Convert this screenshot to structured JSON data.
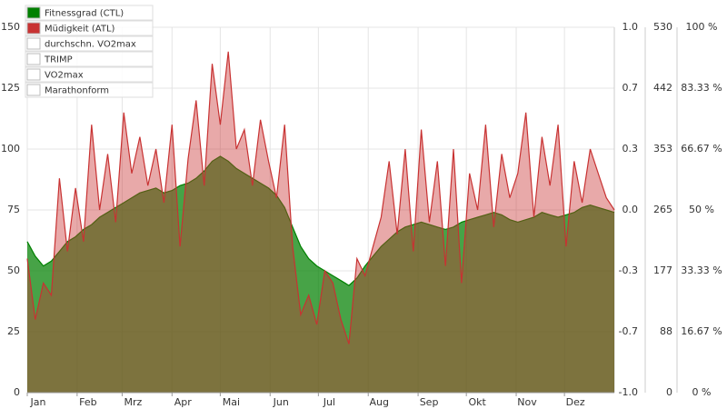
{
  "chart_data": {
    "type": "area",
    "x": [
      0,
      5,
      10,
      15,
      20,
      25,
      30,
      35,
      40,
      45,
      50,
      55,
      60,
      65,
      70,
      75,
      80,
      85,
      90,
      95,
      100,
      105,
      110,
      115,
      120,
      125,
      130,
      135,
      140,
      145,
      150,
      155,
      160,
      165,
      170,
      175,
      180,
      185,
      190,
      195,
      200,
      205,
      210,
      215,
      220,
      225,
      230,
      235,
      240,
      245,
      250,
      255,
      260,
      265,
      270,
      275,
      280,
      285,
      290,
      295,
      300,
      305,
      310,
      315,
      320,
      325,
      330,
      335,
      340,
      345,
      350,
      355,
      360,
      365
    ],
    "xlim": [
      0,
      365
    ],
    "xticks": [
      {
        "value": 0,
        "label": "Jan"
      },
      {
        "value": 31,
        "label": "Feb"
      },
      {
        "value": 59,
        "label": "Mrz"
      },
      {
        "value": 90,
        "label": "Apr"
      },
      {
        "value": 120,
        "label": "Mai"
      },
      {
        "value": 151,
        "label": "Jun"
      },
      {
        "value": 181,
        "label": "Jul"
      },
      {
        "value": 212,
        "label": "Aug"
      },
      {
        "value": 243,
        "label": "Sep"
      },
      {
        "value": 273,
        "label": "Okt"
      },
      {
        "value": 304,
        "label": "Nov"
      },
      {
        "value": 334,
        "label": "Dez"
      }
    ],
    "ylim": [
      0,
      150
    ],
    "yticks": [
      0,
      25,
      50,
      75,
      100,
      125,
      150
    ],
    "y2lim": [
      -1,
      1
    ],
    "y2ticks": [
      {
        "value": 1,
        "label": "1.0"
      },
      {
        "value": 0.667,
        "label": "0.7"
      },
      {
        "value": 0.333,
        "label": "0.3"
      },
      {
        "value": 0,
        "label": "0.0"
      },
      {
        "value": -0.333,
        "label": "-0.3"
      },
      {
        "value": -0.667,
        "label": "-0.7"
      },
      {
        "value": -1,
        "label": "-1.0"
      }
    ],
    "y3lim": [
      0,
      530
    ],
    "y3ticks": [
      {
        "value": 530,
        "label": "530"
      },
      {
        "value": 441.67,
        "label": "442"
      },
      {
        "value": 353.33,
        "label": "353"
      },
      {
        "value": 265,
        "label": "265"
      },
      {
        "value": 176.67,
        "label": "177"
      },
      {
        "value": 88.33,
        "label": "88"
      },
      {
        "value": 0,
        "label": "0"
      }
    ],
    "y4lim": [
      0,
      100
    ],
    "y4ticks": [
      {
        "value": 100,
        "label": "100 %"
      },
      {
        "value": 83.33,
        "label": "83.33 %"
      },
      {
        "value": 66.67,
        "label": "66.67 %"
      },
      {
        "value": 50,
        "label": "50 %"
      },
      {
        "value": 33.33,
        "label": "33.33 %"
      },
      {
        "value": 16.67,
        "label": "16.67 %"
      },
      {
        "value": 0,
        "label": "0 %"
      }
    ],
    "grid": true,
    "series": [
      {
        "name": "Fitnessgrad (CTL)",
        "color": "#008000",
        "visible": true,
        "values": [
          62,
          56,
          52,
          54,
          58,
          62,
          64,
          67,
          69,
          72,
          74,
          76,
          78,
          80,
          82,
          83,
          84,
          82,
          83,
          85,
          86,
          88,
          91,
          95,
          97,
          95,
          92,
          90,
          88,
          86,
          84,
          81,
          76,
          68,
          60,
          55,
          52,
          50,
          48,
          46,
          44,
          47,
          52,
          56,
          60,
          63,
          66,
          68,
          69,
          70,
          69,
          68,
          67,
          68,
          70,
          71,
          72,
          73,
          74,
          73,
          71,
          70,
          71,
          72,
          74,
          73,
          72,
          73,
          74,
          76,
          77,
          76,
          75,
          74
        ]
      },
      {
        "name": "Müdigkeit (ATL)",
        "color": "#c83232",
        "visible": true,
        "values": [
          55,
          30,
          45,
          40,
          88,
          58,
          84,
          62,
          110,
          75,
          98,
          70,
          115,
          90,
          105,
          85,
          100,
          78,
          110,
          60,
          96,
          120,
          85,
          135,
          110,
          140,
          100,
          108,
          85,
          112,
          95,
          80,
          110,
          60,
          32,
          40,
          28,
          50,
          45,
          30,
          20,
          55,
          48,
          60,
          72,
          95,
          65,
          100,
          58,
          108,
          70,
          95,
          52,
          100,
          45,
          90,
          75,
          110,
          68,
          98,
          80,
          90,
          115,
          72,
          105,
          85,
          110,
          60,
          95,
          78,
          100,
          90,
          80,
          75
        ]
      },
      {
        "name": "durchschn. VO2max",
        "visible": false
      },
      {
        "name": "TRIMP",
        "visible": false
      },
      {
        "name": "VO2max",
        "visible": false
      },
      {
        "name": "Marathonform",
        "visible": false
      }
    ]
  }
}
